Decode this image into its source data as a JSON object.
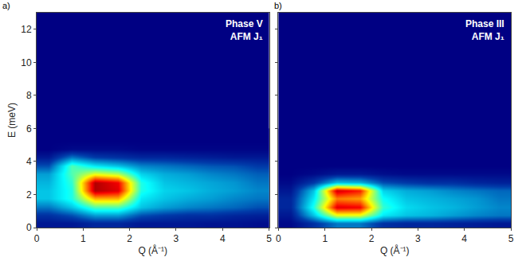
{
  "chart_data": [
    {
      "type": "heatmap",
      "panel": "a)",
      "annotations": [
        "Phase V",
        "AFM J₁"
      ],
      "x_label": "Q (Å⁻¹)",
      "y_label": "E (meV)",
      "x": [
        0.25,
        0.75,
        1.25,
        1.75,
        2.25,
        2.75,
        3.25,
        3.75,
        4.25,
        4.75
      ],
      "y": [
        0.25,
        0.75,
        1.25,
        1.75,
        2.25,
        2.75,
        3.25,
        3.75,
        4.25,
        4.75,
        5.25,
        5.75
      ],
      "z": [
        [
          0.05,
          0.05,
          0.08,
          0.08,
          0.05,
          0.05,
          0.05,
          0.04,
          0.04,
          0.03
        ],
        [
          0.1,
          0.15,
          0.25,
          0.25,
          0.15,
          0.12,
          0.1,
          0.1,
          0.08,
          0.07
        ],
        [
          0.2,
          0.3,
          0.45,
          0.45,
          0.3,
          0.25,
          0.22,
          0.2,
          0.18,
          0.15
        ],
        [
          0.3,
          0.4,
          0.7,
          0.7,
          0.35,
          0.3,
          0.27,
          0.25,
          0.22,
          0.2
        ],
        [
          0.3,
          0.4,
          0.95,
          0.9,
          0.4,
          0.32,
          0.3,
          0.27,
          0.25,
          0.22
        ],
        [
          0.28,
          0.42,
          0.95,
          0.88,
          0.4,
          0.3,
          0.28,
          0.26,
          0.24,
          0.2
        ],
        [
          0.25,
          0.45,
          0.6,
          0.55,
          0.32,
          0.27,
          0.25,
          0.22,
          0.2,
          0.17
        ],
        [
          0.15,
          0.45,
          0.35,
          0.3,
          0.22,
          0.2,
          0.18,
          0.16,
          0.15,
          0.12
        ],
        [
          0.05,
          0.2,
          0.12,
          0.1,
          0.08,
          0.08,
          0.07,
          0.06,
          0.05,
          0.05
        ],
        [
          0,
          0.02,
          0.02,
          0.02,
          0.01,
          0.01,
          0.01,
          0.01,
          0.01,
          0.01
        ],
        [
          0,
          0,
          0,
          0,
          0,
          0,
          0,
          0,
          0,
          0
        ],
        [
          0,
          0,
          0,
          0,
          0,
          0,
          0,
          0,
          0,
          0
        ]
      ],
      "zlim": [
        0,
        1
      ],
      "xlim": [
        0,
        5
      ],
      "ylim": [
        0,
        13
      ],
      "xticks": [
        0,
        1,
        2,
        3,
        4,
        5
      ],
      "yticks": [
        0,
        2,
        4,
        6,
        8,
        10,
        12
      ],
      "grid": false
    },
    {
      "type": "heatmap",
      "panel": "b)",
      "annotations": [
        "Phase III",
        "AFM J₁"
      ],
      "x_label": "Q (Å⁻¹)",
      "tick_labels": "x",
      "x": [
        0.25,
        0.75,
        1.25,
        1.75,
        2.25,
        2.75,
        3.25,
        3.75,
        4.25,
        4.75
      ],
      "y": [
        0.25,
        0.75,
        1.25,
        1.75,
        2.25,
        2.75,
        3.25,
        3.75,
        4.25,
        4.75,
        5.25,
        5.75
      ],
      "z": [
        [
          0.02,
          0.1,
          0.2,
          0.2,
          0.1,
          0.08,
          0.08,
          0.07,
          0.06,
          0.05
        ],
        [
          0.05,
          0.3,
          0.6,
          0.6,
          0.35,
          0.3,
          0.28,
          0.25,
          0.22,
          0.2
        ],
        [
          0.08,
          0.4,
          0.9,
          0.88,
          0.42,
          0.33,
          0.3,
          0.28,
          0.25,
          0.22
        ],
        [
          0.08,
          0.35,
          0.75,
          0.72,
          0.38,
          0.3,
          0.28,
          0.26,
          0.24,
          0.2
        ],
        [
          0.05,
          0.3,
          0.92,
          0.85,
          0.32,
          0.27,
          0.25,
          0.22,
          0.2,
          0.18
        ],
        [
          0.02,
          0.12,
          0.3,
          0.28,
          0.15,
          0.12,
          0.1,
          0.1,
          0.08,
          0.07
        ],
        [
          0,
          0.02,
          0.05,
          0.05,
          0.03,
          0.02,
          0.02,
          0.02,
          0.02,
          0.02
        ],
        [
          0,
          0,
          0,
          0,
          0,
          0,
          0,
          0,
          0,
          0
        ],
        [
          0,
          0,
          0,
          0,
          0,
          0,
          0,
          0,
          0,
          0
        ],
        [
          0,
          0,
          0,
          0,
          0,
          0,
          0,
          0,
          0,
          0
        ],
        [
          0,
          0,
          0,
          0,
          0,
          0,
          0,
          0,
          0,
          0
        ],
        [
          0,
          0,
          0,
          0,
          0,
          0,
          0,
          0,
          0,
          0
        ]
      ],
      "zlim": [
        0,
        1
      ],
      "xlim": [
        0,
        5
      ],
      "ylim": [
        0,
        13
      ],
      "xticks": [
        0,
        1,
        2,
        3,
        4,
        5
      ],
      "yticks": [
        0,
        2,
        4,
        6,
        8,
        10,
        12
      ],
      "grid": false
    }
  ]
}
